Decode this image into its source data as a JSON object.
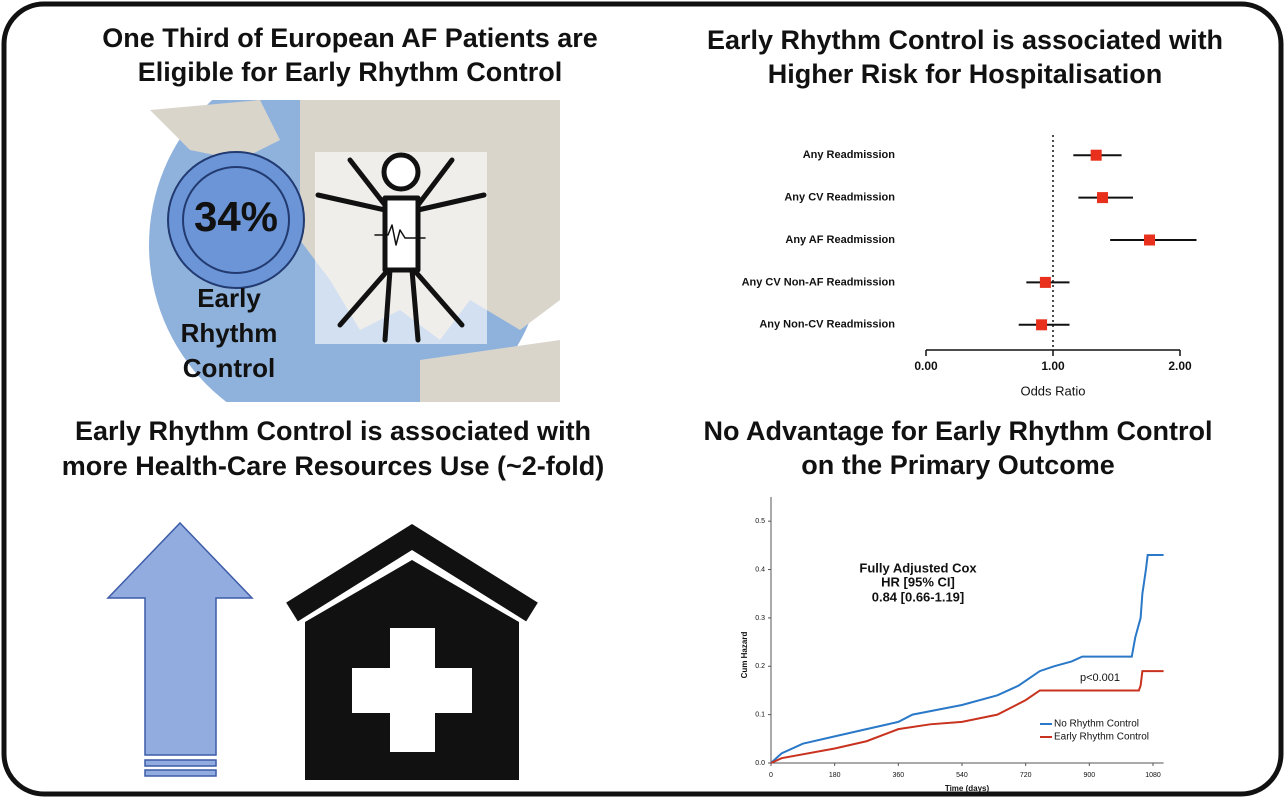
{
  "panels": {
    "top_left": {
      "title": [
        "One Third of European AF Patients are",
        "Eligible for Early Rhythm Control"
      ],
      "percent": "34%",
      "label": [
        "Early",
        "Rhythm",
        "Control"
      ]
    },
    "bottom_left": {
      "title": [
        "Early Rhythm Control is associated with",
        "more Health-Care Resources Use (~2-fold)"
      ]
    }
  },
  "chart_data": [
    {
      "type": "forest",
      "title": [
        "Early Rhythm Control is associated with",
        "Higher Risk for Hospitalisation"
      ],
      "categories": [
        "Any Readmission",
        "Any CV Readmission",
        "Any AF Readmission",
        "Any CV Non-AF Readmission",
        "Any Non-CV Readmission"
      ],
      "values": [
        1.34,
        1.39,
        1.76,
        0.94,
        0.91
      ],
      "ci_low": [
        1.16,
        1.2,
        1.45,
        0.79,
        0.73
      ],
      "ci_high": [
        1.54,
        1.63,
        2.13,
        1.13,
        1.13
      ],
      "color": "#e8301c",
      "xlabel": "Odds Ratio",
      "xlim": [
        0,
        2
      ],
      "xticks": [
        {
          "value": 0,
          "label": "0.00"
        },
        {
          "value": 1,
          "label": "1.00"
        },
        {
          "value": 2,
          "label": "2.00"
        }
      ],
      "reference_line": 1
    },
    {
      "type": "line",
      "title": [
        "No Advantage for Early Rhythm Control",
        "on  the Primary Outcome"
      ],
      "series": [
        {
          "name": "No Rhythm Control",
          "color": "#2a78c8",
          "x": [
            0,
            30,
            90,
            180,
            270,
            360,
            400,
            540,
            640,
            700,
            740,
            760,
            800,
            850,
            880,
            1020,
            1030,
            1045,
            1050,
            1060,
            1065,
            1110
          ],
          "values": [
            0,
            0.02,
            0.04,
            0.055,
            0.07,
            0.085,
            0.1,
            0.12,
            0.14,
            0.16,
            0.18,
            0.19,
            0.2,
            0.21,
            0.22,
            0.22,
            0.26,
            0.3,
            0.35,
            0.4,
            0.43,
            0.43
          ]
        },
        {
          "name": "Early Rhythm Control",
          "color": "#c8321e",
          "x": [
            0,
            30,
            180,
            270,
            360,
            450,
            540,
            640,
            720,
            760,
            1040,
            1045,
            1050,
            1110
          ],
          "values": [
            0,
            0.01,
            0.03,
            0.045,
            0.07,
            0.08,
            0.085,
            0.1,
            0.13,
            0.15,
            0.15,
            0.16,
            0.19,
            0.19
          ]
        }
      ],
      "xlabel": "Time (days)",
      "ylabel": "Cum Hazard",
      "xlim": [
        0,
        1110
      ],
      "ylim": [
        0,
        0.55
      ],
      "xticks": [
        0,
        180,
        360,
        540,
        720,
        900,
        1080
      ],
      "yticks": [
        {
          "value": 0,
          "label": "0.0"
        },
        0.1,
        0.2,
        0.3,
        0.4,
        0.5
      ],
      "annotations": [
        "Fully Adjusted Cox",
        "HR [95% CI]",
        "0.84 [0.66-1.19]",
        "p<0.001"
      ]
    }
  ]
}
